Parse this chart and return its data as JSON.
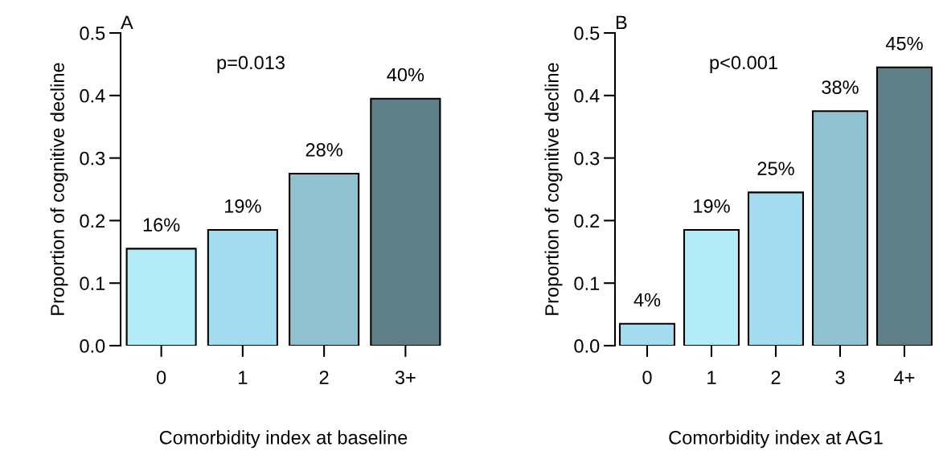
{
  "chart_data": [
    {
      "type": "bar",
      "categories": [
        "0",
        "1",
        "2",
        "3+"
      ],
      "values": [
        0.155,
        0.185,
        0.275,
        0.395
      ],
      "colors": [
        "#b3ecf9",
        "#a4dcef",
        "#8fc1d0",
        "#5e7f87"
      ],
      "value_labels": [
        "16%",
        "19%",
        "28%",
        "40%"
      ],
      "ylim": [
        0,
        0.5
      ],
      "yticks": [
        {
          "value": 0,
          "label": "0.0"
        },
        0.1,
        0.2,
        0.3,
        0.4,
        0.5
      ],
      "ylabel": "Proportion of cognitive decline",
      "xlabel": "Comorbidity index at baseline",
      "annotations": [
        "A",
        {
          "text": "p=0.013"
        }
      ],
      "grid": false
    },
    {
      "type": "bar",
      "categories": [
        "0",
        "1",
        "2",
        "3",
        "4+"
      ],
      "values": [
        0.035,
        0.185,
        0.245,
        0.375,
        0.445
      ],
      "colors": [
        "#a4dcef",
        "#b3ecf9",
        "#a4dcef",
        "#8fc1d0",
        "#5e7f87"
      ],
      "value_labels": [
        "4%",
        "19%",
        "25%",
        "38%",
        "45%"
      ],
      "ylim": [
        0,
        0.5
      ],
      "yticks": [
        {
          "value": 0,
          "label": "0.0"
        },
        0.1,
        0.2,
        0.3,
        0.4,
        0.5
      ],
      "ylabel": "Proportion of cognitive decline",
      "xlabel": "Comorbidity index at AG1",
      "annotations": [
        "B",
        {
          "text": "p<0.001"
        }
      ],
      "grid": false
    }
  ]
}
